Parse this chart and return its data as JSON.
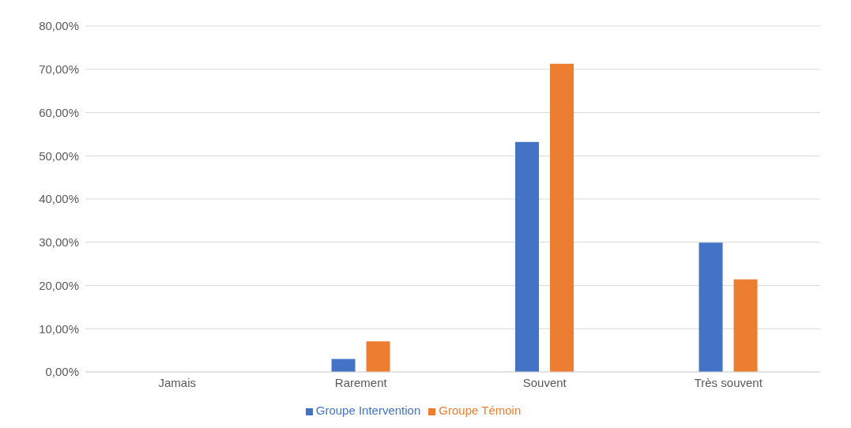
{
  "chart_data": {
    "type": "bar",
    "categories": [
      "Jamais",
      "Rarement",
      "Souvent",
      "Très souvent"
    ],
    "series": [
      {
        "name": "Groupe Intervention",
        "color": "#4472c4",
        "values": [
          0,
          3.0,
          53.2,
          29.9
        ]
      },
      {
        "name": "Groupe Témoin",
        "color": "#ed7d31",
        "values": [
          0,
          7.1,
          71.3,
          21.4
        ]
      }
    ],
    "ylim": [
      0,
      80
    ],
    "yticks": [
      {
        "value": 0,
        "label": "0,00%"
      },
      {
        "value": 10,
        "label": "10,00%"
      },
      {
        "value": 20,
        "label": "20,00%"
      },
      {
        "value": 30,
        "label": "30,00%"
      },
      {
        "value": 40,
        "label": "40,00%"
      },
      {
        "value": 50,
        "label": "50,00%"
      },
      {
        "value": 60,
        "label": "60,00%"
      },
      {
        "value": 70,
        "label": "70,00%"
      },
      {
        "value": 80,
        "label": "80,00%"
      }
    ],
    "grid": "y",
    "legend": "bottom"
  }
}
